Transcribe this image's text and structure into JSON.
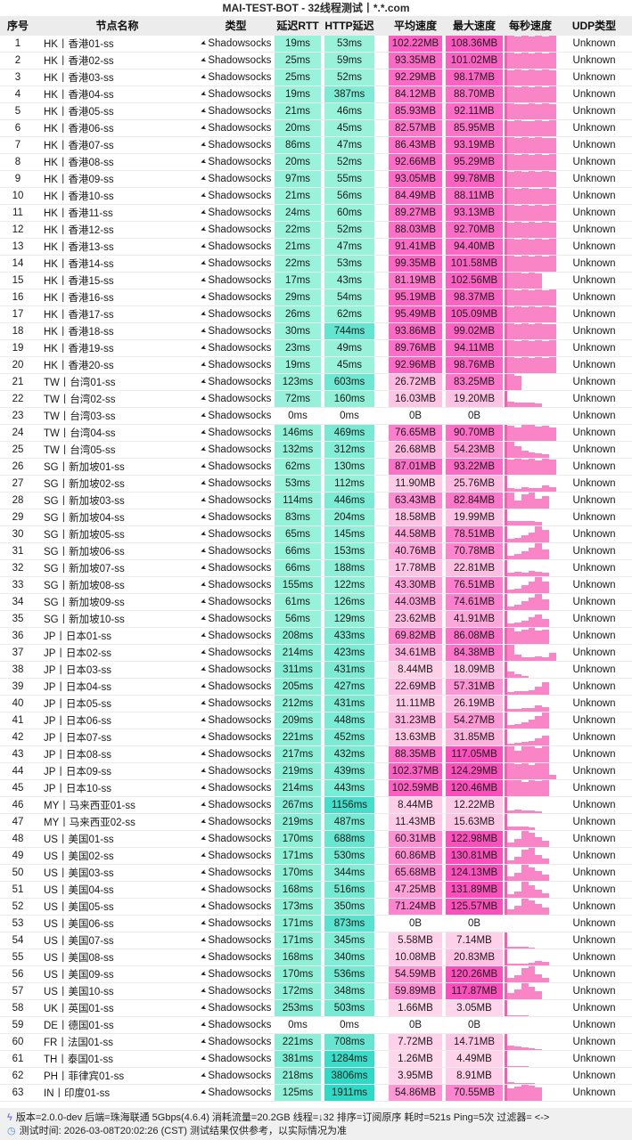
{
  "title": "MAI-TEST-BOT - 32线程测试丨*.*.com",
  "columns": [
    "序号",
    "节点名称",
    "类型",
    "延迟RTT",
    "HTTP延迟",
    "平均速度",
    "最大速度",
    "每秒速度",
    "UDP类型"
  ],
  "type_label": "Shadowsocks",
  "type_icon": "paper-plane-arrow",
  "udp_label": "Unknown",
  "colors": {
    "latency_low": "#99f2da",
    "latency_high": "#2ed9c6",
    "speed_low": "#ffd9ec",
    "speed_high": "#fb50bc",
    "bar_fill": "#f985c6",
    "bar_strip": "#f55fb2",
    "header_bg": "#ececec",
    "footer_bg": "#f0f0f0",
    "icon_lightning": "#7c74f2",
    "icon_clock": "#4a90d9"
  },
  "rows": [
    [
      "HK丨香港01-ss",
      19,
      53,
      102.22,
      108.36,
      [
        1,
        0.97,
        1,
        0.95,
        1,
        0.97,
        1
      ]
    ],
    [
      "HK丨香港02-ss",
      25,
      59,
      93.35,
      101.02,
      [
        1,
        0.96,
        1,
        0.94,
        1,
        0.97,
        1
      ]
    ],
    [
      "HK丨香港03-ss",
      25,
      52,
      92.29,
      98.17,
      [
        0.97,
        1,
        0.95,
        1,
        0.96,
        1,
        0.95
      ]
    ],
    [
      "HK丨香港04-ss",
      19,
      387,
      84.12,
      88.7,
      [
        1,
        0.95,
        1,
        0.97,
        1,
        0.94,
        1
      ]
    ],
    [
      "HK丨香港05-ss",
      21,
      46,
      85.93,
      92.11,
      [
        1,
        0.97,
        0.94,
        1,
        0.96,
        1,
        0.95
      ]
    ],
    [
      "HK丨香港06-ss",
      20,
      45,
      82.57,
      85.95,
      [
        0.96,
        1,
        0.97,
        0.95,
        1,
        0.96,
        1
      ]
    ],
    [
      "HK丨香港07-ss",
      86,
      47,
      86.43,
      93.19,
      [
        1,
        0.95,
        1,
        0.96,
        1,
        0.97,
        0.94
      ]
    ],
    [
      "HK丨香港08-ss",
      20,
      52,
      92.66,
      95.29,
      [
        1,
        0.97,
        1,
        0.95,
        1,
        0.96,
        1
      ]
    ],
    [
      "HK丨香港09-ss",
      97,
      55,
      93.05,
      99.78,
      [
        0.97,
        1,
        0.96,
        1,
        0.95,
        1,
        0.97
      ]
    ],
    [
      "HK丨香港10-ss",
      21,
      56,
      84.49,
      88.11,
      [
        1,
        0.95,
        1,
        0.97,
        0.95,
        1,
        0.96
      ]
    ],
    [
      "HK丨香港11-ss",
      24,
      60,
      89.27,
      93.13,
      [
        1,
        0.96,
        1,
        0.95,
        1,
        0.97,
        1
      ]
    ],
    [
      "HK丨香港12-ss",
      22,
      52,
      88.03,
      92.7,
      [
        0.96,
        1,
        0.95,
        1,
        0.97,
        1,
        0.95
      ]
    ],
    [
      "HK丨香港13-ss",
      21,
      47,
      91.41,
      94.4,
      [
        1,
        0.97,
        1,
        0.96,
        1,
        0.95,
        1
      ]
    ],
    [
      "HK丨香港14-ss",
      22,
      53,
      99.35,
      101.58,
      [
        1,
        0.96,
        1,
        0.97,
        1,
        0.96,
        1
      ]
    ],
    [
      "HK丨香港15-ss",
      17,
      43,
      81.19,
      102.56,
      [
        1,
        1,
        0.97,
        1,
        0.95,
        0,
        0
      ]
    ],
    [
      "HK丨香港16-ss",
      29,
      54,
      95.19,
      98.37,
      [
        1,
        0.95,
        1,
        0.97,
        1,
        0.96,
        1
      ]
    ],
    [
      "HK丨香港17-ss",
      26,
      62,
      95.49,
      105.09,
      [
        0.97,
        1,
        0.95,
        1,
        0.96,
        1,
        0.97
      ]
    ],
    [
      "HK丨香港18-ss",
      30,
      744,
      93.86,
      99.02,
      [
        1,
        0.96,
        1,
        0.95,
        1,
        0.97,
        0.95
      ]
    ],
    [
      "HK丨香港19-ss",
      23,
      49,
      89.76,
      94.11,
      [
        1,
        0.97,
        1,
        0.96,
        1,
        0.95,
        1
      ]
    ],
    [
      "HK丨香港20-ss",
      19,
      45,
      92.96,
      98.76,
      [
        1,
        0.95,
        1,
        0.97,
        1,
        0.96,
        1
      ]
    ],
    [
      "TW丨台湾01-ss",
      123,
      603,
      26.72,
      83.25,
      [
        1,
        0.9,
        0,
        0,
        0,
        0,
        0
      ]
    ],
    [
      "TW丨台湾02-ss",
      72,
      160,
      16.03,
      19.2,
      [
        0.32,
        0.3,
        0.3,
        0.28,
        0.25,
        0,
        0
      ]
    ],
    [
      "TW丨台湾03-ss",
      0,
      0,
      0,
      0,
      []
    ],
    [
      "TW丨台湾04-ss",
      146,
      469,
      76.65,
      90.7,
      [
        0.95,
        0.85,
        1,
        1,
        0.9,
        0.95,
        0.85
      ]
    ],
    [
      "TW丨台湾05-ss",
      132,
      312,
      26.68,
      54.23,
      [
        1,
        0.7,
        0.45,
        0.35,
        0.28,
        0.22,
        0
      ]
    ],
    [
      "SG丨新加坡01-ss",
      62,
      130,
      87.01,
      93.22,
      [
        0.95,
        1,
        0.95,
        1,
        0.9,
        1,
        0.95
      ]
    ],
    [
      "SG丨新加坡02-ss",
      53,
      112,
      11.9,
      25.76,
      [
        0.2,
        0.15,
        0.3,
        0.25,
        0.2,
        0.4,
        0.28
      ]
    ],
    [
      "SG丨新加坡03-ss",
      114,
      446,
      63.43,
      82.84,
      [
        1,
        0.5,
        0.9,
        1,
        0.6,
        0.8,
        0
      ]
    ],
    [
      "SG丨新加坡04-ss",
      83,
      204,
      18.58,
      19.99,
      [
        0.3,
        0.28,
        0.3,
        0.26,
        0.24,
        0,
        0
      ]
    ],
    [
      "SG丨新加坡05-ss",
      65,
      145,
      44.58,
      78.51,
      [
        0.2,
        0.3,
        0.45,
        0.6,
        1,
        0.8,
        0
      ]
    ],
    [
      "SG丨新加坡06-ss",
      66,
      153,
      40.76,
      70.78,
      [
        0.25,
        0.35,
        0.5,
        0.7,
        1,
        0.6,
        0
      ]
    ],
    [
      "SG丨新加坡07-ss",
      66,
      188,
      17.78,
      22.81,
      [
        0.25,
        0.3,
        0.25,
        0.35,
        0.3,
        0.22,
        0
      ]
    ],
    [
      "SG丨新加坡08-ss",
      155,
      122,
      43.3,
      76.51,
      [
        0.2,
        0.3,
        0.5,
        0.75,
        1,
        0.7,
        0
      ]
    ],
    [
      "SG丨新加坡09-ss",
      61,
      126,
      44.03,
      74.61,
      [
        0.25,
        0.35,
        0.55,
        0.8,
        1,
        0.65,
        0
      ]
    ],
    [
      "SG丨新加坡10-ss",
      56,
      129,
      23.62,
      41.91,
      [
        0.2,
        0.3,
        0.4,
        0.6,
        0.8,
        0.5,
        0
      ]
    ],
    [
      "JP丨日本01-ss",
      208,
      433,
      69.82,
      86.08,
      [
        1,
        0.8,
        0.9,
        1,
        0.85,
        0.9,
        0
      ]
    ],
    [
      "JP丨日本02-ss",
      214,
      423,
      34.61,
      84.38,
      [
        1,
        0.4,
        0.2,
        0.2,
        0.3,
        0.25,
        0.5
      ]
    ],
    [
      "JP丨日本03-ss",
      311,
      431,
      8.44,
      18.09,
      [
        0.4,
        0.2,
        0.1,
        0,
        0,
        0,
        0
      ]
    ],
    [
      "JP丨日本04-ss",
      205,
      427,
      22.69,
      57.31,
      [
        0.15,
        0.2,
        0.25,
        0.3,
        0.5,
        0.8,
        0
      ]
    ],
    [
      "JP丨日本05-ss",
      212,
      431,
      11.11,
      26.19,
      [
        0.15,
        0.15,
        0.2,
        0.25,
        0.4,
        0.3,
        0
      ]
    ],
    [
      "JP丨日本06-ss",
      209,
      448,
      31.23,
      54.27,
      [
        0.2,
        0.3,
        0.4,
        0.55,
        0.8,
        1,
        0
      ]
    ],
    [
      "JP丨日本07-ss",
      221,
      452,
      13.63,
      31.85,
      [
        0.1,
        0.15,
        0.2,
        0.3,
        0.45,
        0.6,
        0
      ]
    ],
    [
      "JP丨日本08-ss",
      217,
      432,
      88.35,
      117.05,
      [
        1,
        0.7,
        1,
        1,
        0.9,
        1,
        0
      ]
    ],
    [
      "JP丨日本09-ss",
      219,
      439,
      102.37,
      124.29,
      [
        1,
        0.95,
        1,
        0.9,
        1,
        1,
        0.3
      ]
    ],
    [
      "JP丨日本10-ss",
      214,
      443,
      102.59,
      120.46,
      [
        1,
        1,
        0.9,
        1,
        0.95,
        1,
        0
      ]
    ],
    [
      "MY丨马来西亚01-ss",
      267,
      1156,
      8.44,
      12.22,
      [
        0.15,
        0.2,
        0.15,
        0.15,
        0.1,
        0,
        0
      ]
    ],
    [
      "MY丨马来西亚02-ss",
      219,
      487,
      11.43,
      15.63,
      [
        0.2,
        0.25,
        0.2,
        0.15,
        0,
        0,
        0
      ]
    ],
    [
      "US丨美国01-ss",
      170,
      688,
      60.31,
      122.98,
      [
        0.3,
        0.5,
        1,
        0.9,
        0.6,
        0.4,
        0
      ]
    ],
    [
      "US丨美国02-ss",
      171,
      530,
      60.86,
      130.81,
      [
        0.25,
        0.45,
        0.9,
        1,
        0.55,
        0.35,
        0
      ]
    ],
    [
      "US丨美国03-ss",
      170,
      344,
      65.68,
      124.13,
      [
        0.3,
        0.5,
        1,
        0.85,
        0.6,
        0.4,
        0
      ]
    ],
    [
      "US丨美国04-ss",
      168,
      516,
      47.25,
      131.89,
      [
        0.2,
        0.4,
        1,
        0.8,
        0.5,
        0.3,
        0
      ]
    ],
    [
      "US丨美国05-ss",
      173,
      350,
      71.24,
      125.57,
      [
        0.35,
        0.55,
        1,
        0.9,
        0.65,
        0.45,
        0
      ]
    ],
    [
      "US丨美国06-ss",
      171,
      873,
      0,
      0,
      []
    ],
    [
      "US丨美国07-ss",
      171,
      345,
      5.58,
      7.14,
      [
        0.1,
        0.12,
        0.1,
        0.08,
        0,
        0,
        0
      ]
    ],
    [
      "US丨美国08-ss",
      168,
      340,
      10.08,
      20.83,
      [
        0.1,
        0.1,
        0.12,
        0.15,
        0.3,
        0.25,
        0
      ]
    ],
    [
      "US丨美国09-ss",
      170,
      536,
      54.59,
      120.26,
      [
        0.3,
        0.45,
        0.9,
        1,
        0.5,
        0.3,
        0
      ]
    ],
    [
      "US丨美国10-ss",
      172,
      348,
      59.89,
      117.87,
      [
        0.4,
        0.6,
        1,
        0.8,
        0.5,
        0,
        0
      ]
    ],
    [
      "UK丨英国01-ss",
      253,
      503,
      1.66,
      3.05,
      [
        0.05,
        0.08,
        0.05,
        0,
        0,
        0,
        0
      ]
    ],
    [
      "DE丨德国01-ss",
      0,
      0,
      0,
      0,
      []
    ],
    [
      "FR丨法国01-ss",
      221,
      708,
      7.72,
      14.71,
      [
        0.3,
        0.2,
        0.15,
        0.1,
        0.08,
        0,
        0
      ]
    ],
    [
      "TH丨泰国01-ss",
      381,
      1284,
      1.26,
      4.49,
      [
        0.08,
        0.05,
        0.04,
        0,
        0,
        0,
        0
      ]
    ],
    [
      "PH丨菲律宾01-ss",
      218,
      3806,
      3.95,
      8.91,
      [
        0.1,
        0.08,
        0.06,
        0.05,
        0,
        0,
        0
      ]
    ],
    [
      "IN丨印度01-ss",
      125,
      1911,
      54.86,
      70.55,
      [
        0.8,
        0.9,
        1,
        0.95,
        0.85,
        0,
        0
      ]
    ]
  ],
  "footer": {
    "line1": "版本=2.0.0-dev  后端=珠海联通 5Gbps(4.6.4)  消耗流量=20.2GB  线程=↓32  排序=订阅原序  耗时=521s  Ping=5次  过滤器= <->",
    "line2": "测试时间: 2026-03-08T20:02:26 (CST)  测试结果仅供参考，以实际情况为准"
  }
}
